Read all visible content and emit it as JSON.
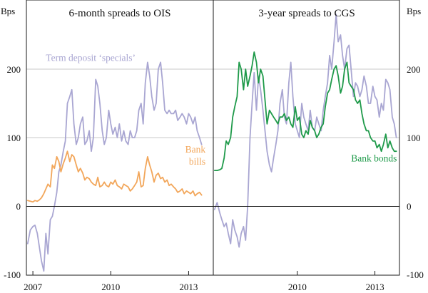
{
  "chart_data": {
    "type": "line",
    "y_unit": "Bps",
    "ylim": [
      -100,
      300
    ],
    "yticks": [
      -100,
      0,
      100,
      200
    ],
    "grid": true,
    "xlim": [
      2006.75,
      2013.95
    ],
    "panels": [
      {
        "title": "6-month spreads to OIS",
        "xticks": [
          {
            "value": 2007.0,
            "label": "2007"
          },
          {
            "value": 2010.0,
            "label": "2010"
          },
          {
            "value": 2013.0,
            "label": "2013"
          }
        ],
        "annotations": [
          {
            "series": "Term deposit 'specials'",
            "lines": [
              "Term deposit ‘specials’"
            ],
            "anchor": "start",
            "x": 2007.5,
            "y": 212,
            "color": "#a9a6d2"
          },
          {
            "series": "Bank bills",
            "lines": [
              "Bank",
              "bills"
            ],
            "anchor": "end",
            "x": 2013.65,
            "y": 78,
            "color": "#f2a65a"
          }
        ],
        "series": [
          {
            "name": "Term deposit 'specials'",
            "color": "#a9a6d2",
            "x": [
              2006.8,
              2006.9,
              2007.0,
              2007.08,
              2007.17,
              2007.25,
              2007.33,
              2007.42,
              2007.5,
              2007.58,
              2007.67,
              2007.75,
              2007.83,
              2007.92,
              2008.0,
              2008.08,
              2008.17,
              2008.25,
              2008.33,
              2008.42,
              2008.5,
              2008.58,
              2008.67,
              2008.75,
              2008.83,
              2008.92,
              2009.0,
              2009.08,
              2009.17,
              2009.25,
              2009.33,
              2009.42,
              2009.5,
              2009.58,
              2009.67,
              2009.75,
              2009.83,
              2009.92,
              2010.0,
              2010.08,
              2010.17,
              2010.25,
              2010.33,
              2010.42,
              2010.5,
              2010.58,
              2010.67,
              2010.75,
              2010.83,
              2010.92,
              2011.0,
              2011.08,
              2011.17,
              2011.25,
              2011.33,
              2011.42,
              2011.5,
              2011.58,
              2011.67,
              2011.75,
              2011.83,
              2011.92,
              2012.0,
              2012.08,
              2012.17,
              2012.25,
              2012.33,
              2012.42,
              2012.5,
              2012.58,
              2012.67,
              2012.75,
              2012.83,
              2012.92,
              2013.0,
              2013.08,
              2013.17,
              2013.25,
              2013.33,
              2013.42,
              2013.5
            ],
            "y": [
              -55,
              -35,
              -30,
              -28,
              -40,
              -60,
              -80,
              -95,
              -40,
              -70,
              -20,
              -15,
              0,
              20,
              50,
              60,
              80,
              95,
              150,
              160,
              170,
              120,
              90,
              100,
              120,
              130,
              90,
              95,
              110,
              80,
              100,
              185,
              175,
              150,
              110,
              90,
              100,
              140,
              120,
              105,
              115,
              100,
              120,
              95,
              110,
              95,
              90,
              110,
              100,
              100,
              110,
              140,
              150,
              120,
              180,
              210,
              190,
              160,
              140,
              150,
              200,
              210,
              180,
              140,
              135,
              140,
              135,
              135,
              140,
              125,
              130,
              135,
              130,
              120,
              135,
              130,
              120,
              130,
              110,
              100,
              90
            ]
          },
          {
            "name": "Bank bills",
            "color": "#f2a65a",
            "x": [
              2006.8,
              2006.9,
              2007.0,
              2007.08,
              2007.17,
              2007.25,
              2007.33,
              2007.42,
              2007.5,
              2007.58,
              2007.67,
              2007.75,
              2007.83,
              2007.92,
              2008.0,
              2008.08,
              2008.17,
              2008.25,
              2008.33,
              2008.42,
              2008.5,
              2008.58,
              2008.67,
              2008.75,
              2008.83,
              2008.92,
              2009.0,
              2009.08,
              2009.17,
              2009.25,
              2009.33,
              2009.42,
              2009.5,
              2009.58,
              2009.67,
              2009.75,
              2009.83,
              2009.92,
              2010.0,
              2010.08,
              2010.17,
              2010.25,
              2010.33,
              2010.42,
              2010.5,
              2010.58,
              2010.67,
              2010.75,
              2010.83,
              2010.92,
              2011.0,
              2011.08,
              2011.17,
              2011.25,
              2011.33,
              2011.42,
              2011.5,
              2011.58,
              2011.67,
              2011.75,
              2011.83,
              2011.92,
              2012.0,
              2012.08,
              2012.17,
              2012.25,
              2012.33,
              2012.42,
              2012.5,
              2012.58,
              2012.67,
              2012.75,
              2012.83,
              2012.92,
              2013.0,
              2013.08,
              2013.17,
              2013.25,
              2013.33,
              2013.42,
              2013.5
            ],
            "y": [
              8,
              7,
              6,
              8,
              7,
              9,
              12,
              18,
              25,
              32,
              28,
              60,
              55,
              72,
              65,
              50,
              62,
              70,
              80,
              65,
              75,
              72,
              60,
              50,
              55,
              48,
              38,
              42,
              40,
              35,
              32,
              30,
              42,
              28,
              30,
              35,
              30,
              28,
              35,
              32,
              38,
              30,
              28,
              25,
              32,
              30,
              28,
              22,
              25,
              30,
              35,
              50,
              28,
              30,
              55,
              72,
              60,
              50,
              35,
              45,
              48,
              40,
              42,
              35,
              38,
              30,
              32,
              28,
              25,
              20,
              22,
              25,
              18,
              22,
              20,
              18,
              22,
              15,
              18,
              20,
              16
            ]
          }
        ]
      },
      {
        "title": "3-year spreads to CGS",
        "xticks": [
          {
            "value": 2010.0,
            "label": "2010"
          },
          {
            "value": 2013.0,
            "label": "2013"
          }
        ],
        "annotations": [
          {
            "series": "Bank bonds",
            "lines": [
              "Bank bonds"
            ],
            "anchor": "end",
            "x": 2013.85,
            "y": 65,
            "color": "#1f9a4a"
          }
        ],
        "series": [
          {
            "name": "Term deposit 'specials'",
            "color": "#a9a6d2",
            "x": [
              2006.8,
              2006.9,
              2007.0,
              2007.08,
              2007.17,
              2007.25,
              2007.33,
              2007.42,
              2007.5,
              2007.58,
              2007.67,
              2007.75,
              2007.83,
              2007.92,
              2008.0,
              2008.08,
              2008.17,
              2008.25,
              2008.33,
              2008.42,
              2008.5,
              2008.58,
              2008.67,
              2008.75,
              2008.83,
              2008.92,
              2009.0,
              2009.08,
              2009.17,
              2009.25,
              2009.33,
              2009.42,
              2009.5,
              2009.58,
              2009.67,
              2009.75,
              2009.83,
              2009.92,
              2010.0,
              2010.08,
              2010.17,
              2010.25,
              2010.33,
              2010.42,
              2010.5,
              2010.58,
              2010.67,
              2010.75,
              2010.83,
              2010.92,
              2011.0,
              2011.08,
              2011.17,
              2011.25,
              2011.33,
              2011.42,
              2011.5,
              2011.58,
              2011.67,
              2011.75,
              2011.83,
              2011.92,
              2012.0,
              2012.08,
              2012.17,
              2012.25,
              2012.33,
              2012.42,
              2012.5,
              2012.58,
              2012.67,
              2012.75,
              2012.83,
              2012.92,
              2013.0,
              2013.08,
              2013.17,
              2013.25,
              2013.33,
              2013.42,
              2013.5,
              2013.58,
              2013.67,
              2013.75,
              2013.83
            ],
            "y": [
              -5,
              5,
              -10,
              -20,
              -30,
              -25,
              -40,
              -55,
              -20,
              -35,
              -45,
              -60,
              -40,
              -30,
              -50,
              0,
              100,
              150,
              195,
              140,
              190,
              170,
              140,
              110,
              80,
              60,
              50,
              70,
              90,
              110,
              150,
              170,
              130,
              120,
              180,
              210,
              160,
              120,
              110,
              100,
              150,
              130,
              120,
              110,
              140,
              115,
              110,
              130,
              120,
              110,
              140,
              160,
              180,
              220,
              200,
              240,
              280,
              240,
              250,
              220,
              200,
              230,
              235,
              200,
              160,
              180,
              175,
              160,
              170,
              190,
              175,
              150,
              150,
              175,
              160,
              155,
              130,
              150,
              140,
              185,
              180,
              170,
              130,
              120,
              100
            ]
          },
          {
            "name": "Bank bonds",
            "color": "#1f9a4a",
            "x": [
              2006.8,
              2006.9,
              2007.0,
              2007.08,
              2007.17,
              2007.25,
              2007.33,
              2007.42,
              2007.5,
              2007.58,
              2007.67,
              2007.75,
              2007.83,
              2007.92,
              2008.0,
              2008.08,
              2008.17,
              2008.25,
              2008.33,
              2008.42,
              2008.5,
              2008.58,
              2008.67,
              2008.75,
              2008.83,
              2008.92,
              2009.0,
              2009.08,
              2009.17,
              2009.25,
              2009.33,
              2009.42,
              2009.5,
              2009.58,
              2009.67,
              2009.75,
              2009.83,
              2009.92,
              2010.0,
              2010.08,
              2010.17,
              2010.25,
              2010.33,
              2010.42,
              2010.5,
              2010.58,
              2010.67,
              2010.75,
              2010.83,
              2010.92,
              2011.0,
              2011.08,
              2011.17,
              2011.25,
              2011.33,
              2011.42,
              2011.5,
              2011.58,
              2011.67,
              2011.75,
              2011.83,
              2011.92,
              2012.0,
              2012.08,
              2012.17,
              2012.25,
              2012.33,
              2012.42,
              2012.5,
              2012.58,
              2012.67,
              2012.75,
              2012.83,
              2012.92,
              2013.0,
              2013.08,
              2013.17,
              2013.25,
              2013.33,
              2013.42,
              2013.5,
              2013.58,
              2013.67,
              2013.75,
              2013.83
            ],
            "y": [
              52,
              52,
              53,
              55,
              70,
              95,
              90,
              100,
              130,
              145,
              160,
              210,
              200,
              170,
              200,
              175,
              190,
              205,
              225,
              210,
              180,
              200,
              190,
              155,
              120,
              140,
              135,
              130,
              125,
              120,
              130,
              130,
              135,
              125,
              130,
              120,
              115,
              145,
              125,
              130,
              105,
              100,
              110,
              105,
              125,
              115,
              110,
              100,
              105,
              115,
              120,
              145,
              165,
              170,
              185,
              200,
              205,
              190,
              165,
              175,
              200,
              210,
              180,
              175,
              170,
              155,
              150,
              155,
              135,
              120,
              110,
              110,
              100,
              95,
              95,
              85,
              90,
              80,
              90,
              105,
              85,
              95,
              85,
              80,
              80
            ]
          }
        ]
      }
    ]
  }
}
